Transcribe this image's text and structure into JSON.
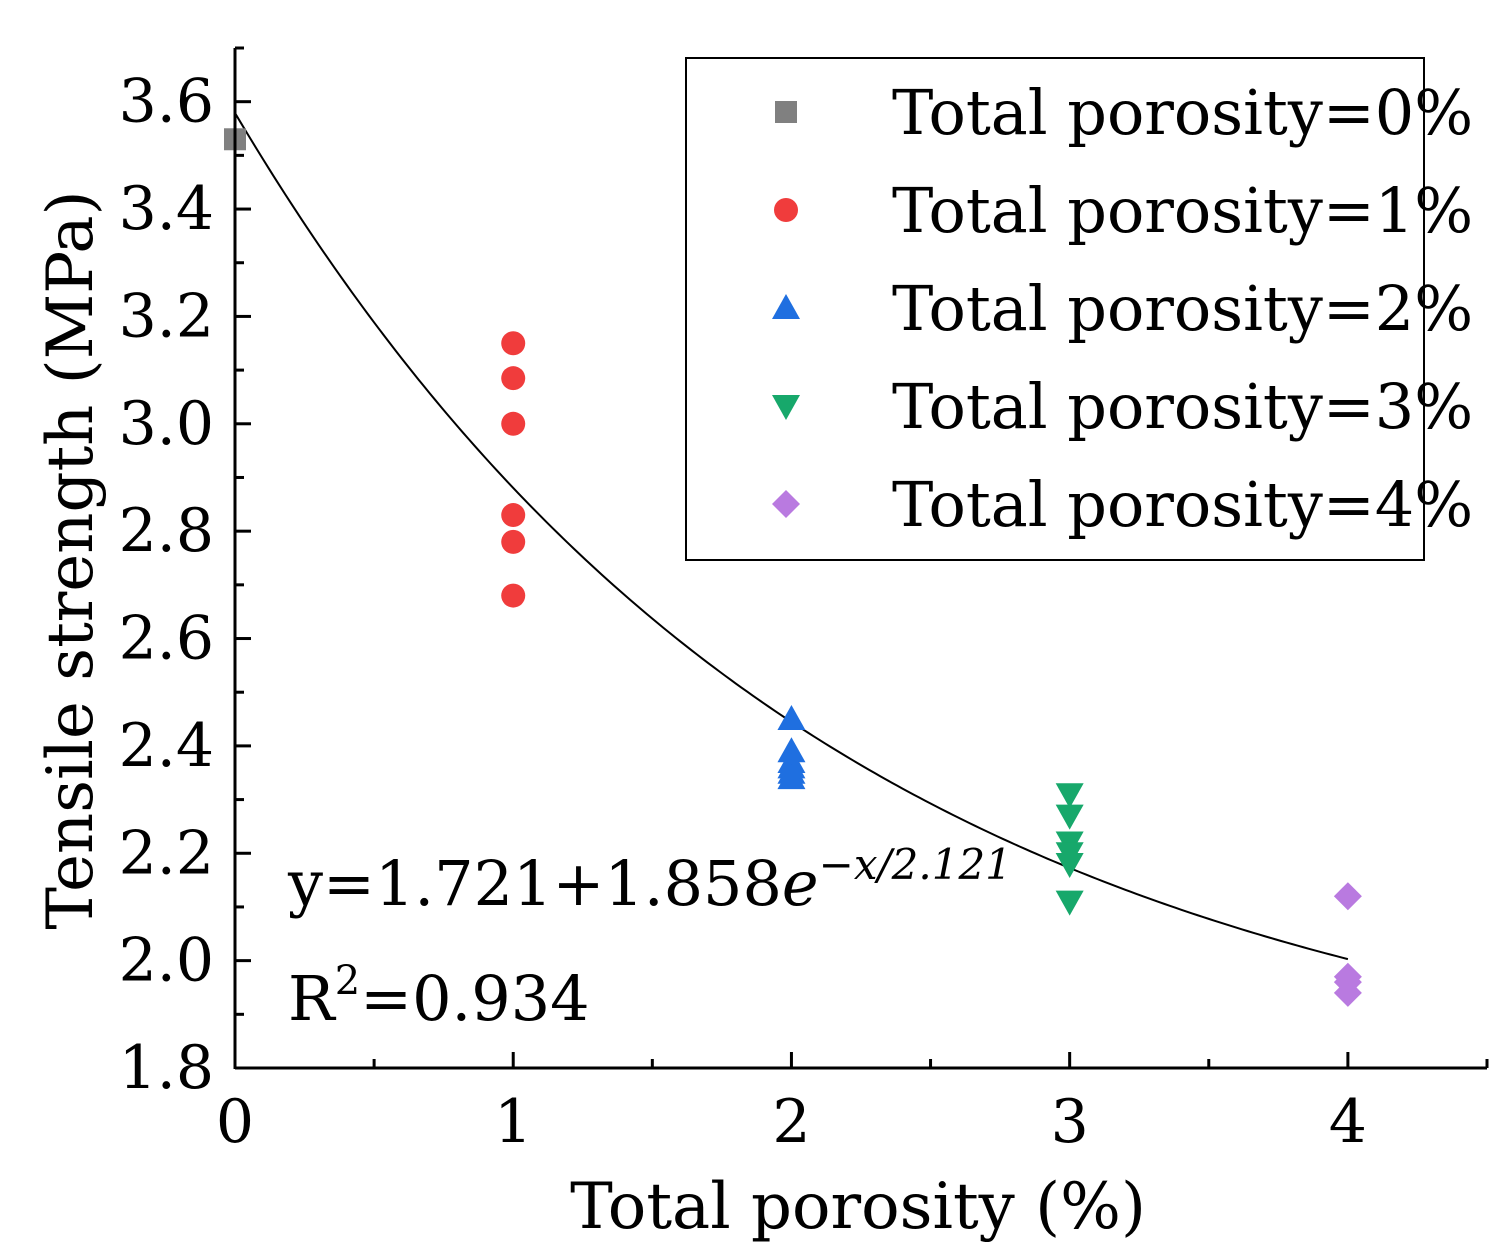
{
  "chart_data": {
    "type": "scatter",
    "xlabel": "Total porosity (%)",
    "ylabel": "Tensile strength (MPa)",
    "xlim": [
      0,
      4.5
    ],
    "ylim": [
      1.8,
      3.7
    ],
    "xticks": [
      0,
      1,
      2,
      3,
      4
    ],
    "xtick_labels": [
      "0",
      "1",
      "2",
      "3",
      "4"
    ],
    "yticks": [
      1.8,
      2.0,
      2.2,
      2.4,
      2.6,
      2.8,
      3.0,
      3.2,
      3.4,
      3.6
    ],
    "ytick_labels": [
      "1.8",
      "2.0",
      "2.2",
      "2.4",
      "2.6",
      "2.8",
      "3.0",
      "3.2",
      "3.4",
      "3.6"
    ],
    "legend_position": "top-right",
    "series": [
      {
        "name": "Total porosity=0%",
        "marker": "square",
        "color": "#808080",
        "x": [
          0
        ],
        "y": [
          3.53
        ]
      },
      {
        "name": "Total porosity=1%",
        "marker": "circle",
        "color": "#f03c3c",
        "x": [
          1,
          1,
          1,
          1,
          1,
          1
        ],
        "y": [
          3.15,
          3.085,
          3.0,
          2.83,
          2.78,
          2.68
        ]
      },
      {
        "name": "Total porosity=2%",
        "marker": "triangle-up",
        "color": "#1f6fe0",
        "x": [
          2,
          2,
          2,
          2,
          2,
          2
        ],
        "y": [
          2.45,
          2.39,
          2.37,
          2.36,
          2.35,
          2.34
        ]
      },
      {
        "name": "Total porosity=3%",
        "marker": "triangle-down",
        "color": "#17a86b",
        "x": [
          3,
          3,
          3,
          3,
          3,
          3
        ],
        "y": [
          2.31,
          2.27,
          2.22,
          2.2,
          2.18,
          2.11
        ]
      },
      {
        "name": "Total porosity=4%",
        "marker": "diamond",
        "color": "#b97ae0",
        "x": [
          4,
          4,
          4,
          4
        ],
        "y": [
          2.12,
          1.97,
          1.96,
          1.94
        ]
      }
    ],
    "fit": {
      "y0": 1.721,
      "A": 1.858,
      "t": 2.121,
      "x_range": [
        0,
        4
      ],
      "color": "#000000"
    },
    "annotations": {
      "equation_prefix": "y=1.721+1.858",
      "equation_base": "e",
      "equation_exponent": "−x/2.121",
      "r2_prefix": "R",
      "r2_sup": "2",
      "r2_value": "=0.934"
    }
  }
}
